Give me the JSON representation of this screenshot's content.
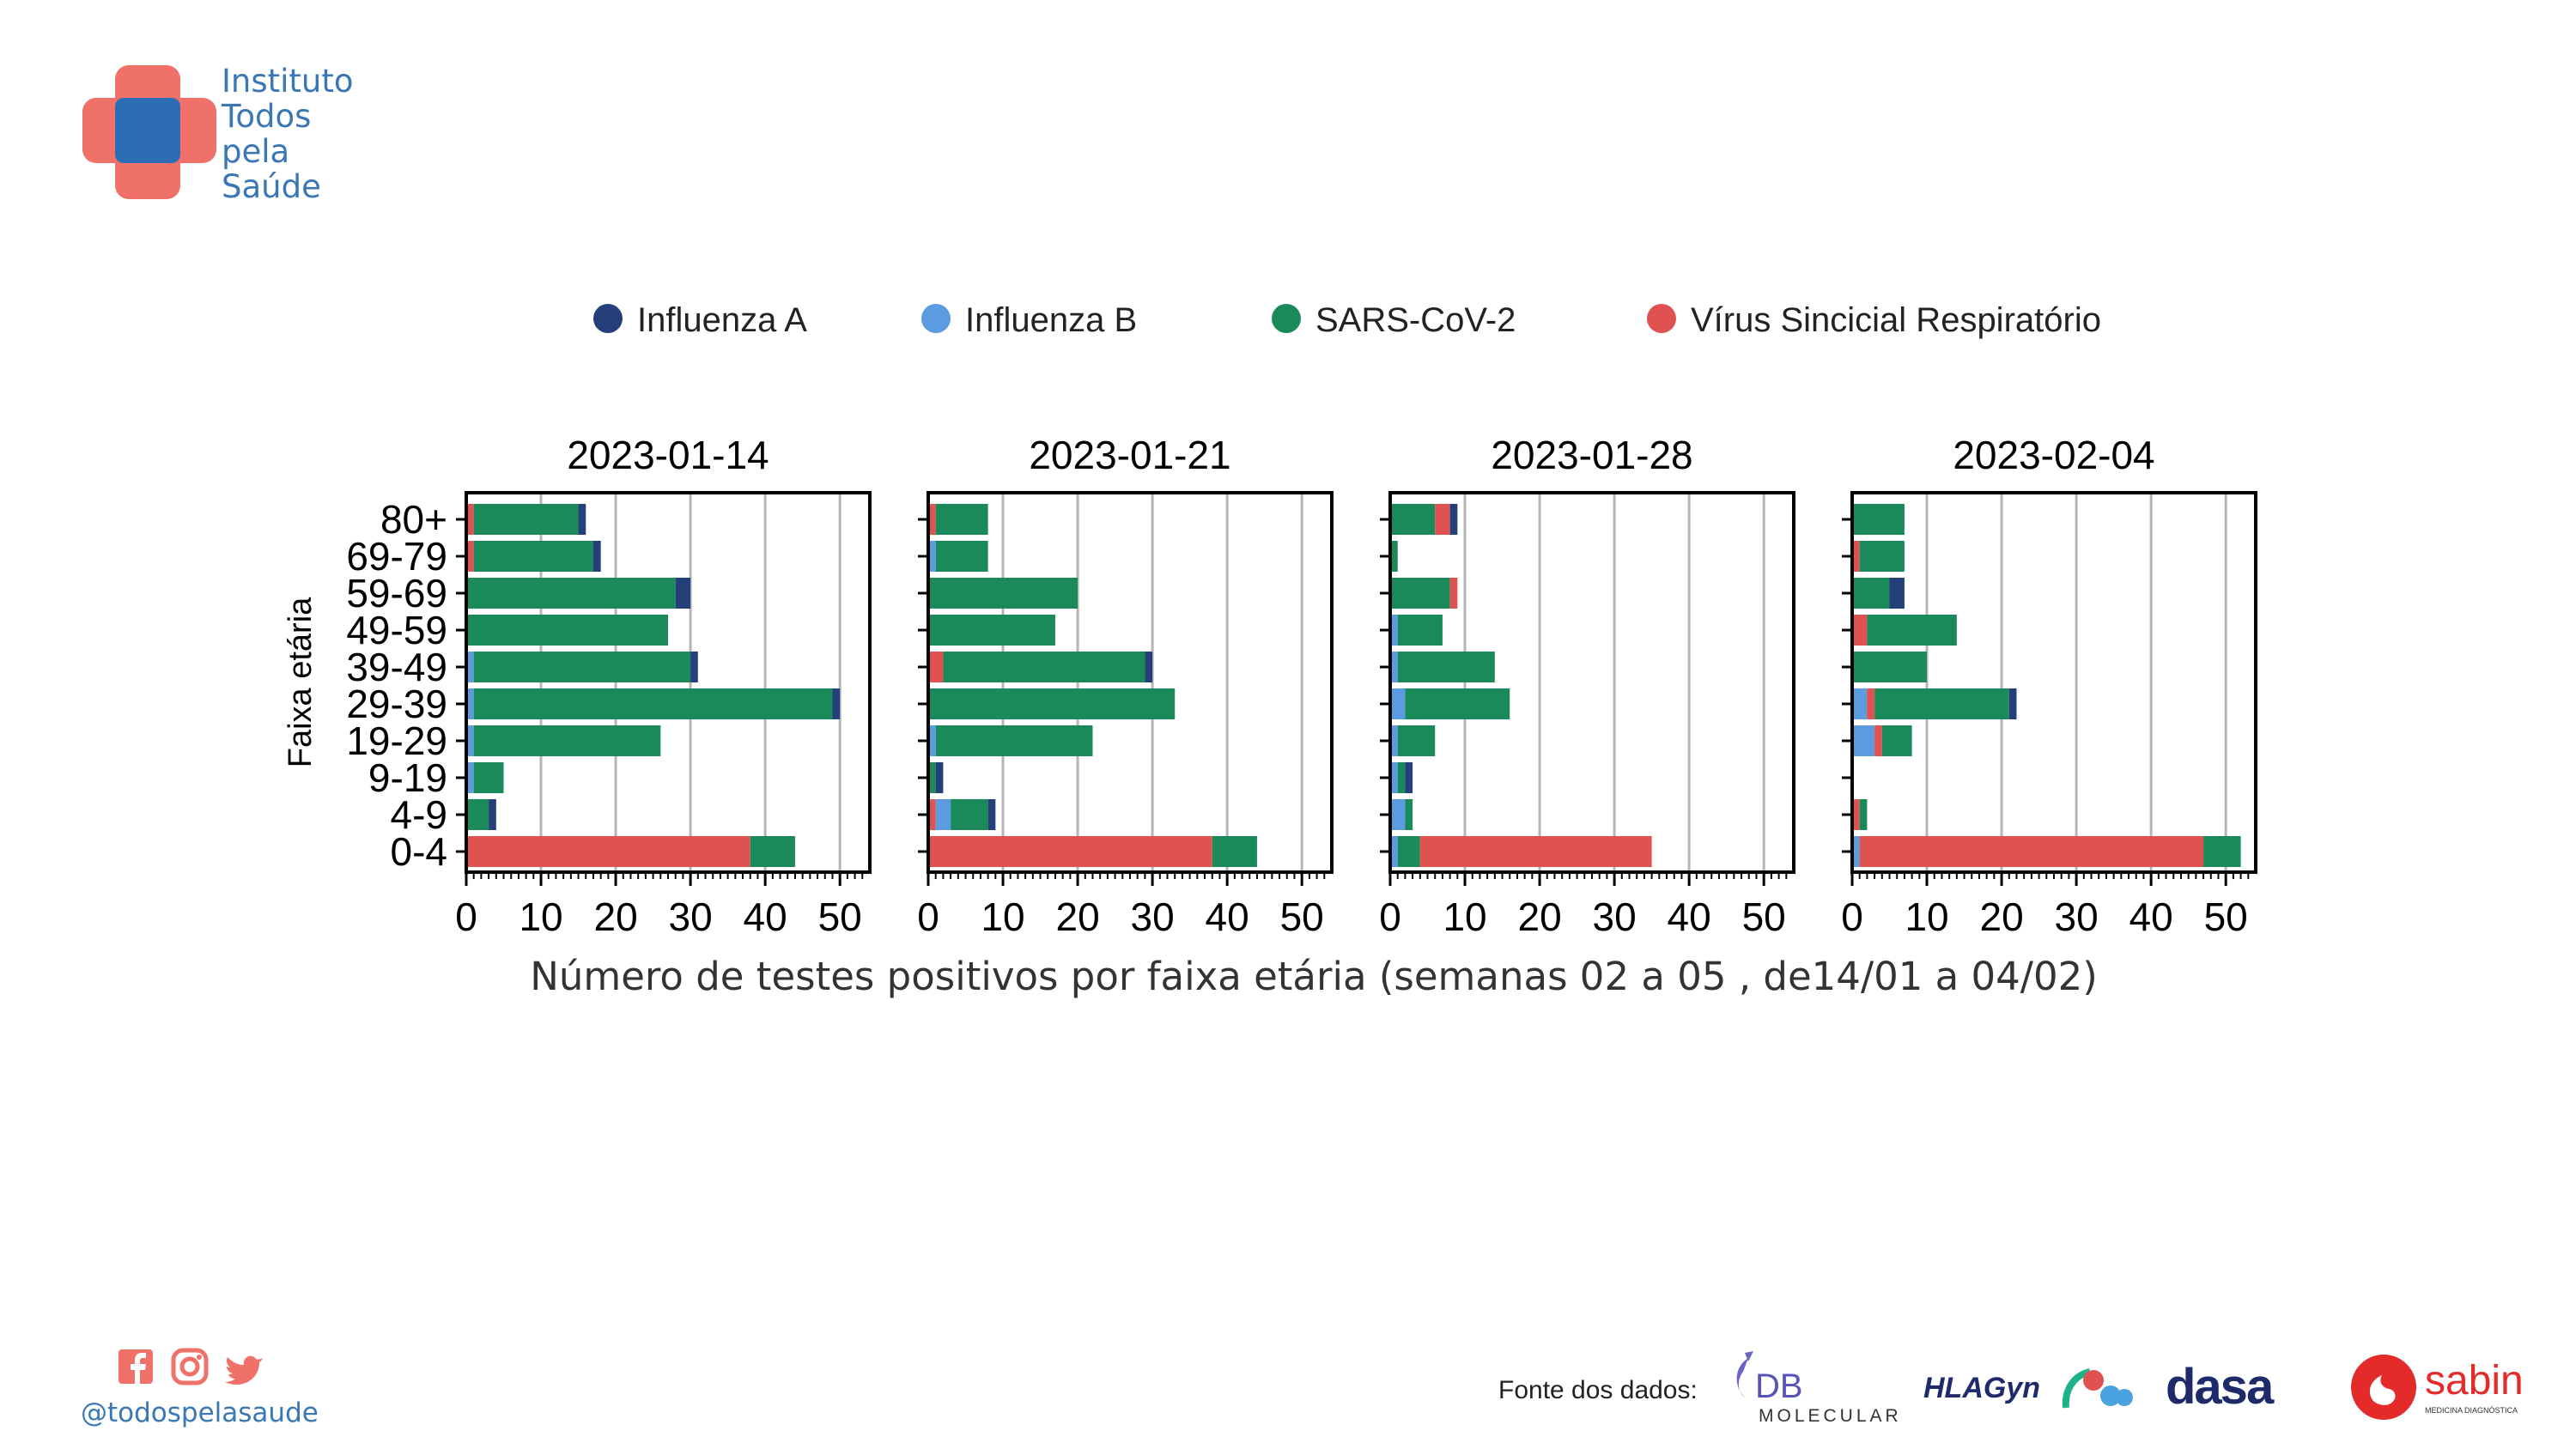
{
  "brand": {
    "lines": [
      "Instituto",
      "Todos",
      "pela",
      "Saúde"
    ],
    "colors": {
      "cross_outer": "#f0716a",
      "cross_inner": "#2b6cb5",
      "text": "#3a77b5"
    }
  },
  "colors": {
    "influenza_a": "#253f7a",
    "influenza_b": "#5b9be0",
    "sars_cov_2": "#1b8a5a",
    "vsr": "#e05252"
  },
  "chart_data": {
    "type": "bar",
    "orientation": "horizontal",
    "stacked": true,
    "ylabel": "Faixa etária",
    "xlabel": "Número de testes positivos por faixa etária (semanas 02 a 05 , de14/01 a 04/02)",
    "categories": [
      "80+",
      "69-79",
      "59-69",
      "49-59",
      "39-49",
      "29-39",
      "19-29",
      "9-19",
      "4-9",
      "0-4"
    ],
    "xlim": [
      0,
      54
    ],
    "xticks": [
      0,
      10,
      20,
      30,
      40,
      50
    ],
    "grid": "vertical",
    "legend": {
      "placement": "top",
      "entries": [
        {
          "key": "influenza_a",
          "label": "Influenza A"
        },
        {
          "key": "influenza_b",
          "label": "Influenza B"
        },
        {
          "key": "sars_cov_2",
          "label": "SARS-CoV-2"
        },
        {
          "key": "vsr",
          "label": "Vírus Sincicial Respiratório"
        }
      ]
    },
    "panels": [
      {
        "title": "2023-01-14",
        "values": {
          "vsr": [
            1,
            1,
            0,
            0,
            0,
            0,
            0,
            0,
            0,
            38
          ],
          "influenza_b": [
            0,
            0,
            0,
            0,
            1,
            1,
            1,
            1,
            0,
            0
          ],
          "sars_cov_2": [
            14,
            16,
            28,
            27,
            29,
            48,
            25,
            4,
            3,
            6
          ],
          "influenza_a": [
            1,
            1,
            2,
            0,
            1,
            1,
            0,
            0,
            1,
            0
          ]
        }
      },
      {
        "title": "2023-01-21",
        "values": {
          "vsr": [
            1,
            0,
            0,
            0,
            2,
            0,
            0,
            0,
            1,
            38
          ],
          "influenza_b": [
            0,
            1,
            0,
            0,
            0,
            0,
            1,
            0,
            2,
            0
          ],
          "sars_cov_2": [
            7,
            7,
            20,
            17,
            27,
            33,
            21,
            1,
            5,
            6
          ],
          "influenza_a": [
            0,
            0,
            0,
            0,
            1,
            0,
            0,
            1,
            1,
            0
          ]
        }
      },
      {
        "title": "2023-01-28",
        "values": {
          "influenza_b": [
            0,
            0,
            0,
            1,
            1,
            2,
            1,
            1,
            2,
            1
          ],
          "sars_cov_2": [
            6,
            1,
            8,
            6,
            13,
            14,
            5,
            1,
            1,
            3
          ],
          "vsr": [
            2,
            0,
            1,
            0,
            0,
            0,
            0,
            0,
            0,
            31
          ],
          "influenza_a": [
            1,
            0,
            0,
            0,
            0,
            0,
            0,
            1,
            0,
            0
          ]
        }
      },
      {
        "title": "2023-02-04",
        "values": {
          "influenza_b": [
            0,
            0,
            0,
            0,
            0,
            2,
            3,
            0,
            0,
            1
          ],
          "vsr": [
            0,
            1,
            0,
            2,
            0,
            1,
            1,
            0,
            1,
            46
          ],
          "sars_cov_2": [
            7,
            6,
            5,
            12,
            10,
            18,
            4,
            0,
            1,
            5
          ],
          "influenza_a": [
            0,
            0,
            2,
            0,
            0,
            1,
            0,
            0,
            0,
            0
          ]
        }
      }
    ]
  },
  "footer": {
    "social_icons": [
      "facebook-icon",
      "instagram-icon",
      "twitter-icon"
    ],
    "handle": "@todospelasaude",
    "source_label": "Fonte dos dados:",
    "sponsors": [
      {
        "name": "DB",
        "sub": "MOLECULAR"
      },
      {
        "name": "HLAGyn"
      },
      {
        "name": "DASA"
      },
      {
        "name": "sabin",
        "sub": "MEDICINA DIAGNÓSTICA"
      }
    ]
  }
}
